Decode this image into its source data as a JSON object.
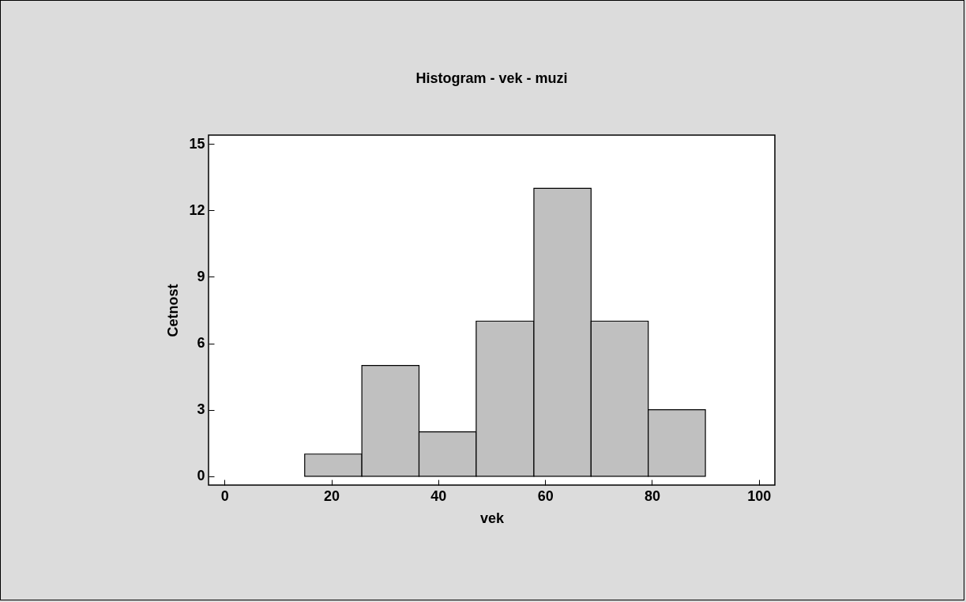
{
  "chart_data": {
    "type": "histogram",
    "title": "Histogram - vek - muzi",
    "xlabel": "vek",
    "ylabel": "Cetnost",
    "bins": [
      15,
      25.7,
      36.4,
      47.1,
      57.9,
      68.6,
      79.3,
      90
    ],
    "values": [
      1,
      5,
      2,
      7,
      13,
      7,
      3
    ],
    "color": "#c0c0c0",
    "xlim": [
      -3,
      103
    ],
    "xticks": [
      0,
      20,
      40,
      60,
      80,
      100
    ],
    "ylim": [
      -0.4,
      15.4
    ],
    "yticks": [
      0,
      3,
      6,
      9,
      12,
      15
    ],
    "grid": false
  }
}
